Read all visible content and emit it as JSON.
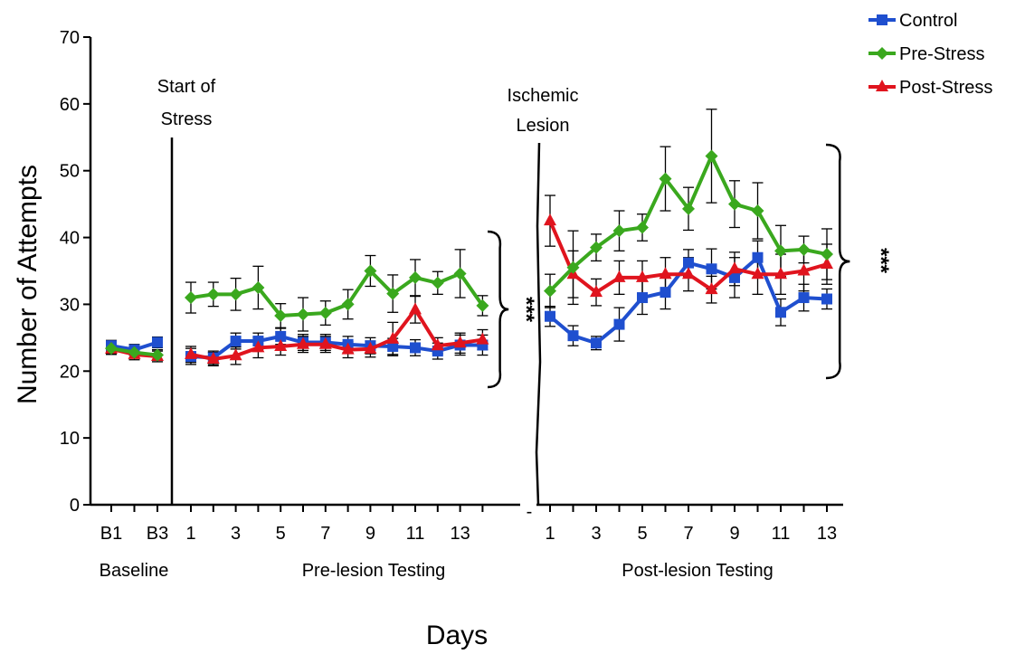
{
  "chart_data": {
    "type": "line",
    "ylabel": "Number of Attempts",
    "xlabel": "Days",
    "ylim": [
      0,
      70
    ],
    "yticks": [
      0,
      10,
      20,
      30,
      40,
      50,
      60,
      70
    ],
    "grid": false,
    "legend_position": "top-right",
    "groups": [
      {
        "label": "Baseline",
        "days": [
          "B1",
          "B2",
          "B3"
        ],
        "tick_labels": [
          "B1",
          "",
          "B3"
        ],
        "series": [
          {
            "name": "Control",
            "color": "#1f4fcf",
            "marker": "square",
            "values": [
              23.8,
              23.2,
              24.3
            ],
            "errors": [
              0.8,
              0.8,
              0.8
            ]
          },
          {
            "name": "Pre-Stress",
            "color": "#3aa81e",
            "marker": "diamond",
            "values": [
              23.4,
              22.8,
              22.4
            ],
            "errors": [
              0.8,
              0.8,
              0.8
            ]
          },
          {
            "name": "Post-Stress",
            "color": "#e0141e",
            "marker": "triangle",
            "values": [
              23.3,
              22.5,
              22.2
            ],
            "errors": [
              0.8,
              0.8,
              0.8
            ]
          }
        ]
      },
      {
        "label": "Pre-lesion Testing",
        "days": [
          "1",
          "2",
          "3",
          "4",
          "5",
          "6",
          "7",
          "8",
          "9",
          "10",
          "11",
          "12",
          "13",
          "14"
        ],
        "tick_labels": [
          "1",
          "",
          "3",
          "",
          "5",
          "",
          "7",
          "",
          "9",
          "",
          "11",
          "",
          "13",
          ""
        ],
        "series": [
          {
            "name": "Control",
            "color": "#1f4fcf",
            "marker": "square",
            "values": [
              22.2,
              22.0,
              24.5,
              24.5,
              25.2,
              24.3,
              24.3,
              24.0,
              23.8,
              23.7,
              23.5,
              23.0,
              23.9,
              23.9
            ],
            "errors": [
              1.2,
              1.0,
              1.2,
              1.2,
              1.2,
              1.2,
              1.2,
              1.2,
              1.2,
              1.2,
              1.2,
              1.2,
              1.5,
              1.5
            ]
          },
          {
            "name": "Pre-Stress",
            "color": "#3aa81e",
            "marker": "diamond",
            "values": [
              31.0,
              31.5,
              31.5,
              32.5,
              28.3,
              28.5,
              28.7,
              30.0,
              35.0,
              31.6,
              34.0,
              33.2,
              34.6,
              29.8
            ],
            "errors": [
              2.3,
              1.8,
              2.4,
              3.2,
              1.8,
              2.5,
              1.8,
              2.2,
              2.3,
              2.8,
              2.7,
              1.7,
              3.6,
              1.5
            ]
          },
          {
            "name": "Post-Stress",
            "color": "#e0141e",
            "marker": "triangle",
            "values": [
              22.5,
              21.8,
              22.3,
              23.5,
              23.7,
              24.0,
              24.0,
              23.2,
              23.3,
              24.8,
              29.2,
              23.8,
              24.2,
              24.7
            ],
            "errors": [
              1.2,
              1.0,
              1.3,
              1.5,
              1.3,
              1.2,
              1.2,
              1.2,
              1.2,
              2.5,
              2.0,
              1.2,
              1.5,
              1.5
            ]
          }
        ]
      },
      {
        "label": "Post-lesion Testing",
        "days": [
          "1",
          "2",
          "3",
          "4",
          "5",
          "6",
          "7",
          "8",
          "9",
          "10",
          "11",
          "12",
          "13"
        ],
        "tick_labels": [
          "1",
          "",
          "3",
          "",
          "5",
          "",
          "7",
          "",
          "9",
          "",
          "11",
          "",
          "13"
        ],
        "series": [
          {
            "name": "Control",
            "color": "#1f4fcf",
            "marker": "square",
            "values": [
              28.2,
              25.3,
              24.2,
              27.0,
              31.0,
              31.8,
              36.2,
              35.3,
              34.0,
              37.0,
              28.8,
              31.0,
              30.8
            ],
            "errors": [
              1.5,
              1.5,
              1.0,
              2.5,
              2.5,
              2.5,
              2.0,
              3.0,
              3.0,
              2.5,
              2.0,
              2.0,
              1.5
            ]
          },
          {
            "name": "Pre-Stress",
            "color": "#3aa81e",
            "marker": "diamond",
            "values": [
              32.0,
              35.5,
              38.5,
              41.0,
              41.5,
              48.8,
              44.3,
              52.2,
              45.0,
              44.0,
              38.0,
              38.2,
              37.5
            ],
            "errors": [
              2.5,
              5.5,
              2.0,
              3.0,
              2.0,
              4.8,
              3.2,
              7.0,
              3.5,
              4.2,
              3.8,
              2.0,
              3.8
            ]
          },
          {
            "name": "Post-Stress",
            "color": "#e0141e",
            "marker": "triangle",
            "values": [
              42.5,
              34.5,
              31.8,
              34.0,
              34.0,
              34.5,
              34.5,
              32.2,
              35.3,
              34.5,
              34.5,
              35.0,
              36.0
            ],
            "errors": [
              3.8,
              3.5,
              2.0,
              2.5,
              2.5,
              2.5,
              2.5,
              2.0,
              2.5,
              3.0,
              3.0,
              3.0,
              3.0
            ]
          }
        ]
      }
    ],
    "legend": [
      {
        "name": "Control",
        "color": "#1f4fcf",
        "marker": "square"
      },
      {
        "name": "Pre-Stress",
        "color": "#3aa81e",
        "marker": "diamond"
      },
      {
        "name": "Post-Stress",
        "color": "#e0141e",
        "marker": "triangle"
      }
    ],
    "annotations": {
      "start_of_stress": [
        "Start of",
        "Stress"
      ],
      "ischemic_lesion": [
        "Ischemic",
        "Lesion"
      ],
      "significance": "***",
      "axis_break_mark": "-"
    }
  }
}
